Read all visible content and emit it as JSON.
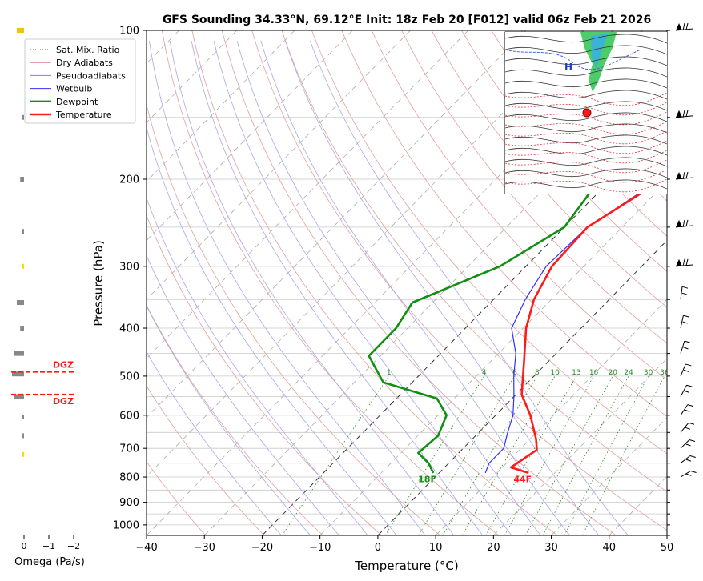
{
  "chart_data": {
    "type": "line",
    "title": "GFS Sounding 34.33°N, 69.12°E Init: 18z Feb 20 [F012] valid 06z Feb 21 2026",
    "xlabel": "Temperature (°C)",
    "ylabel": "Pressure (hPa)",
    "xlim": [
      -40,
      50
    ],
    "ylim": [
      1050,
      100
    ],
    "y_scale": "log",
    "grid": true,
    "x_ticks": [
      "−40",
      "−30",
      "−20",
      "−10",
      "0",
      "10",
      "20",
      "30",
      "40",
      "50"
    ],
    "x_tick_values": [
      -40,
      -30,
      -20,
      -10,
      0,
      10,
      20,
      30,
      40,
      50
    ],
    "y_ticks": [
      "100",
      "200",
      "300",
      "400",
      "500",
      "600",
      "700",
      "800",
      "900",
      "1000"
    ],
    "y_tick_values": [
      100,
      200,
      300,
      400,
      500,
      600,
      700,
      800,
      900,
      1000
    ],
    "legend": {
      "placement": "top-left",
      "entries": [
        {
          "label": "Sat. Mix. Ratio",
          "color": "#2a8a2a",
          "style": "dotted"
        },
        {
          "label": "Dry Adiabats",
          "color": "#d98080",
          "style": "solid"
        },
        {
          "label": "Pseudoadiabats",
          "color": "#8080d8",
          "style": "solid"
        },
        {
          "label": "Wetbulb",
          "color": "#3030ff",
          "style": "solid"
        },
        {
          "label": "Dewpoint",
          "color": "#109010",
          "style": "solid"
        },
        {
          "label": "Temperature",
          "color": "#ff1a1a",
          "style": "solid"
        }
      ]
    },
    "series": [
      {
        "name": "Temperature",
        "color": "#ff1a1a",
        "points": [
          [
            15.5,
            785
          ],
          [
            11.5,
            765
          ],
          [
            13,
            705
          ],
          [
            11,
            670
          ],
          [
            6,
            600
          ],
          [
            1,
            545
          ],
          [
            -4,
            470
          ],
          [
            -9.5,
            400
          ],
          [
            -13,
            350
          ],
          [
            -15.5,
            300
          ],
          [
            -16,
            250
          ],
          [
            -11,
            200
          ],
          [
            -8,
            150
          ],
          [
            -8.5,
            100
          ]
        ]
      },
      {
        "name": "Dewpoint",
        "color": "#109010",
        "points": [
          [
            -1,
            785
          ],
          [
            -3.5,
            750
          ],
          [
            -7,
            715
          ],
          [
            -6.5,
            660
          ],
          [
            -8.5,
            600
          ],
          [
            -13,
            555
          ],
          [
            -25,
            515
          ],
          [
            -32,
            455
          ],
          [
            -32,
            400
          ],
          [
            -33.5,
            355
          ],
          [
            -24.5,
            300
          ],
          [
            -20,
            250
          ],
          [
            -22,
            200
          ],
          [
            -26,
            150
          ],
          [
            -9.5,
            100
          ]
        ]
      },
      {
        "name": "Wetbulb",
        "color": "#3030ff",
        "points": [
          [
            8,
            785
          ],
          [
            7,
            750
          ],
          [
            7,
            700
          ],
          [
            5,
            650
          ],
          [
            3,
            600
          ],
          [
            0,
            550
          ],
          [
            -3.5,
            500
          ],
          [
            -7,
            450
          ],
          [
            -12,
            400
          ],
          [
            -14.5,
            350
          ],
          [
            -16.5,
            300
          ],
          [
            -16,
            250
          ],
          [
            -11.5,
            200
          ],
          [
            -8.5,
            150
          ],
          [
            -8.5,
            100
          ]
        ]
      }
    ],
    "annotations": [
      {
        "text": "18F",
        "x": -1,
        "p": 808,
        "color": "#109010"
      },
      {
        "text": "44F",
        "x": 15.5,
        "p": 808,
        "color": "#ff1a1a"
      }
    ],
    "mixing_ratio_labels": [
      "1",
      "4",
      "6",
      "8",
      "10",
      "13",
      "16",
      "20",
      "24",
      "30",
      "36"
    ],
    "mixing_ratio_values": [
      1,
      4,
      6,
      8,
      10,
      13,
      16,
      20,
      24,
      30,
      36
    ],
    "omega_panel": {
      "xlabel": "Omega (Pa/s)",
      "x_ticks": [
        "0",
        "−1",
        "−2"
      ],
      "x_tick_values": [
        0,
        -1,
        -2
      ],
      "dgz_label": "DGZ",
      "dgz_top_hpa": 490,
      "dgz_bottom_hpa": 545,
      "dgz_color": "#ff1a1a",
      "bars": [
        {
          "p": 100,
          "omega": 0.15,
          "color": "#f0c020"
        },
        {
          "p": 150,
          "omega": 0.02,
          "color": "#888888"
        },
        {
          "p": 200,
          "omega": 0.08,
          "color": "#888888"
        },
        {
          "p": 255,
          "omega": 0.02,
          "color": "#888888"
        },
        {
          "p": 300,
          "omega": 0.02,
          "color": "#f0e000"
        },
        {
          "p": 355,
          "omega": 0.15,
          "color": "#888888"
        },
        {
          "p": 400,
          "omega": 0.08,
          "color": "#888888"
        },
        {
          "p": 450,
          "omega": 0.2,
          "color": "#888888"
        },
        {
          "p": 495,
          "omega": 0.25,
          "color": "#888888"
        },
        {
          "p": 550,
          "omega": 0.2,
          "color": "#888888"
        },
        {
          "p": 605,
          "omega": 0.05,
          "color": "#888888"
        },
        {
          "p": 660,
          "omega": 0.05,
          "color": "#888888"
        },
        {
          "p": 720,
          "omega": 0.02,
          "color": "#f0e000"
        }
      ]
    }
  }
}
